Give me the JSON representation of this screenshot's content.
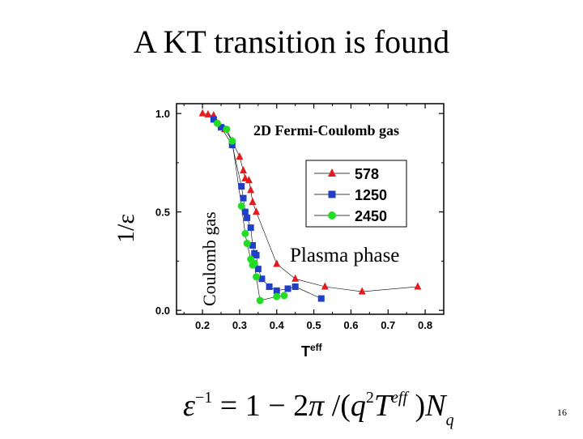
{
  "slide": {
    "title": "A KT transition is found",
    "page_number": "16"
  },
  "formula": {
    "epsilon": "ε",
    "exp_minus_one": "−1",
    "eq": " = 1 − 2",
    "pi": "π",
    "slash_open": " /(",
    "q": "q",
    "two": "2",
    "T": "T",
    "eff": "eff",
    "close": " )",
    "N": "N",
    "sub_q": "q"
  },
  "chart_data": {
    "type": "line",
    "title": "2D Fermi-Coulomb  gas",
    "xlabel_main": "T",
    "xlabel_sup": "eff",
    "ylabel": "1/ε",
    "xlim": [
      0.13,
      0.85
    ],
    "ylim": [
      -0.02,
      1.05
    ],
    "xticks": [
      0.2,
      0.3,
      0.4,
      0.5,
      0.6,
      0.7,
      0.8
    ],
    "xtick_labels": [
      "0.2",
      "0.3",
      "0.4",
      "0.5",
      "0.6",
      "0.7",
      "0.8"
    ],
    "yticks": [
      0.0,
      0.5,
      1.0
    ],
    "ytick_labels": [
      "0.0",
      "0.5",
      "1.0"
    ],
    "legend_position": "right",
    "annotations": {
      "plasma": "Plasma phase",
      "coulomb": "Coulomb gas"
    },
    "series": [
      {
        "name": "578",
        "marker": "triangle",
        "color": "#e41a1c",
        "x": [
          0.2,
          0.215,
          0.23,
          0.26,
          0.28,
          0.3,
          0.31,
          0.315,
          0.325,
          0.33,
          0.335,
          0.345,
          0.4,
          0.45,
          0.53,
          0.63,
          0.78
        ],
        "y": [
          1.0,
          0.995,
          0.99,
          0.92,
          0.86,
          0.78,
          0.71,
          0.67,
          0.66,
          0.61,
          0.55,
          0.5,
          0.235,
          0.16,
          0.12,
          0.095,
          0.12
        ]
      },
      {
        "name": "1250",
        "marker": "square",
        "color": "#1f3fc8",
        "x": [
          0.23,
          0.25,
          0.28,
          0.305,
          0.31,
          0.315,
          0.32,
          0.33,
          0.335,
          0.34,
          0.345,
          0.35,
          0.36,
          0.38,
          0.4,
          0.43,
          0.45,
          0.52
        ],
        "y": [
          0.97,
          0.93,
          0.84,
          0.63,
          0.57,
          0.5,
          0.47,
          0.42,
          0.33,
          0.29,
          0.28,
          0.21,
          0.16,
          0.12,
          0.1,
          0.11,
          0.12,
          0.06
        ]
      },
      {
        "name": "2450",
        "marker": "circle",
        "color": "#22dd22",
        "x": [
          0.24,
          0.265,
          0.28,
          0.305,
          0.315,
          0.32,
          0.33,
          0.335,
          0.34,
          0.345,
          0.355,
          0.4,
          0.42
        ],
        "y": [
          0.95,
          0.92,
          0.86,
          0.53,
          0.39,
          0.34,
          0.26,
          0.23,
          0.24,
          0.17,
          0.05,
          0.07,
          0.075
        ]
      }
    ]
  }
}
